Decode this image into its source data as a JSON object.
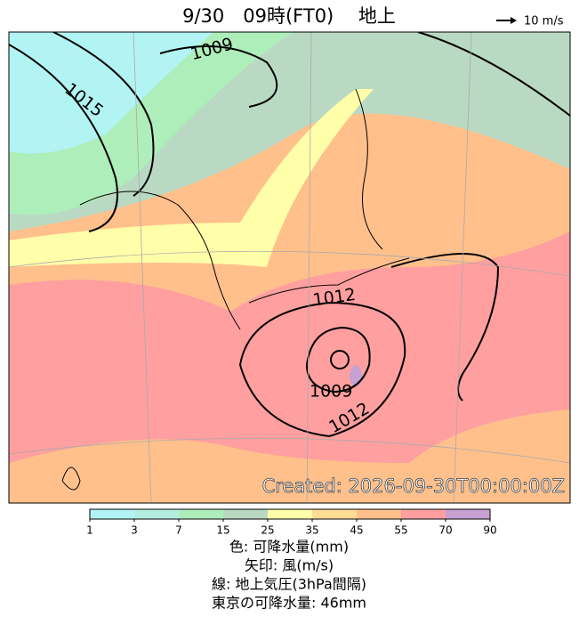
{
  "header": {
    "title": "9/30　09時(FT0)　 地上",
    "wind_legend": "10 m/s"
  },
  "map": {
    "isobar_labels": [
      "1009",
      "1015",
      "1012",
      "1009",
      "1012"
    ],
    "created": "Created: 2026-09-30T00:00:00Z"
  },
  "colorbar": {
    "ticks": [
      1,
      3,
      7,
      15,
      25,
      35,
      45,
      55,
      70,
      90
    ],
    "colors": [
      "#b2f3f3",
      "#b4eee0",
      "#aeeeba",
      "#b9d9c3",
      "#ffffaa",
      "#ffdc96",
      "#ffc08c",
      "#ff9f9f",
      "#c8a0d2"
    ]
  },
  "captions": [
    "色: 可降水量(mm)",
    "矢印: 風(m/s)",
    "線: 地上気圧(3hPa間隔)",
    "東京の可降水量: 46mm"
  ]
}
